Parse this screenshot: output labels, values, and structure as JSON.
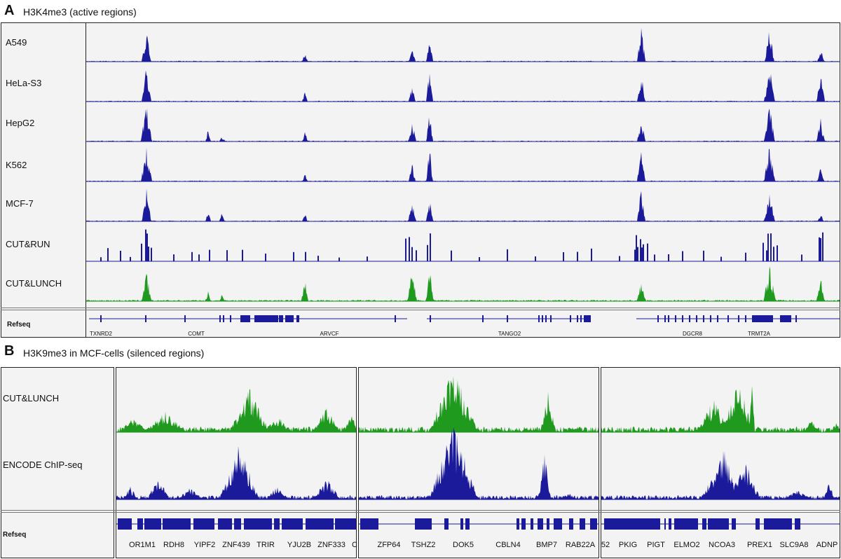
{
  "panelA": {
    "letter": "A",
    "title": "H3K4me3 (active regions)",
    "tracks": [
      {
        "label": "A549",
        "color": "#1a1a9a"
      },
      {
        "label": "HeLa-S3",
        "color": "#1a1a9a"
      },
      {
        "label": "HepG2",
        "color": "#1a1a9a"
      },
      {
        "label": "K562",
        "color": "#1a1a9a"
      },
      {
        "label": "MCF-7",
        "color": "#1a1a9a"
      },
      {
        "label": "CUT&RUN",
        "color": "#1a1a9a"
      },
      {
        "label": "CUT&LUNCH",
        "color": "#1f9a1f"
      }
    ],
    "refseq_label": "Refseq",
    "genes": [
      "TXNRD2",
      "COMT",
      "ARVCF",
      "TANGO2",
      "DGCR8",
      "TRMT2A"
    ]
  },
  "panelB": {
    "letter": "B",
    "title": "H3K9me3 in MCF-cells (silenced regions)",
    "tracks": [
      {
        "label": "CUT&LUNCH",
        "color": "#1f9a1f"
      },
      {
        "label": "ENCODE ChIP-seq",
        "color": "#1a1a9a"
      }
    ],
    "refseq_label": "Refseq",
    "regions": [
      {
        "genes": [
          "OR1M1",
          "RDH8",
          "YIPF2",
          "ZNF439",
          "TRIR",
          "YJU2B",
          "ZNF333",
          "C"
        ]
      },
      {
        "genes": [
          "ZFP64",
          "TSHZ2",
          "DOK5",
          "CBLN4",
          "BMP7",
          "RAB22A"
        ]
      },
      {
        "genes": [
          "52",
          "PKIG",
          "PIGT",
          "ELMO2",
          "NCOA3",
          "PREX1",
          "SLC9A8",
          "ADNP"
        ]
      }
    ]
  }
}
